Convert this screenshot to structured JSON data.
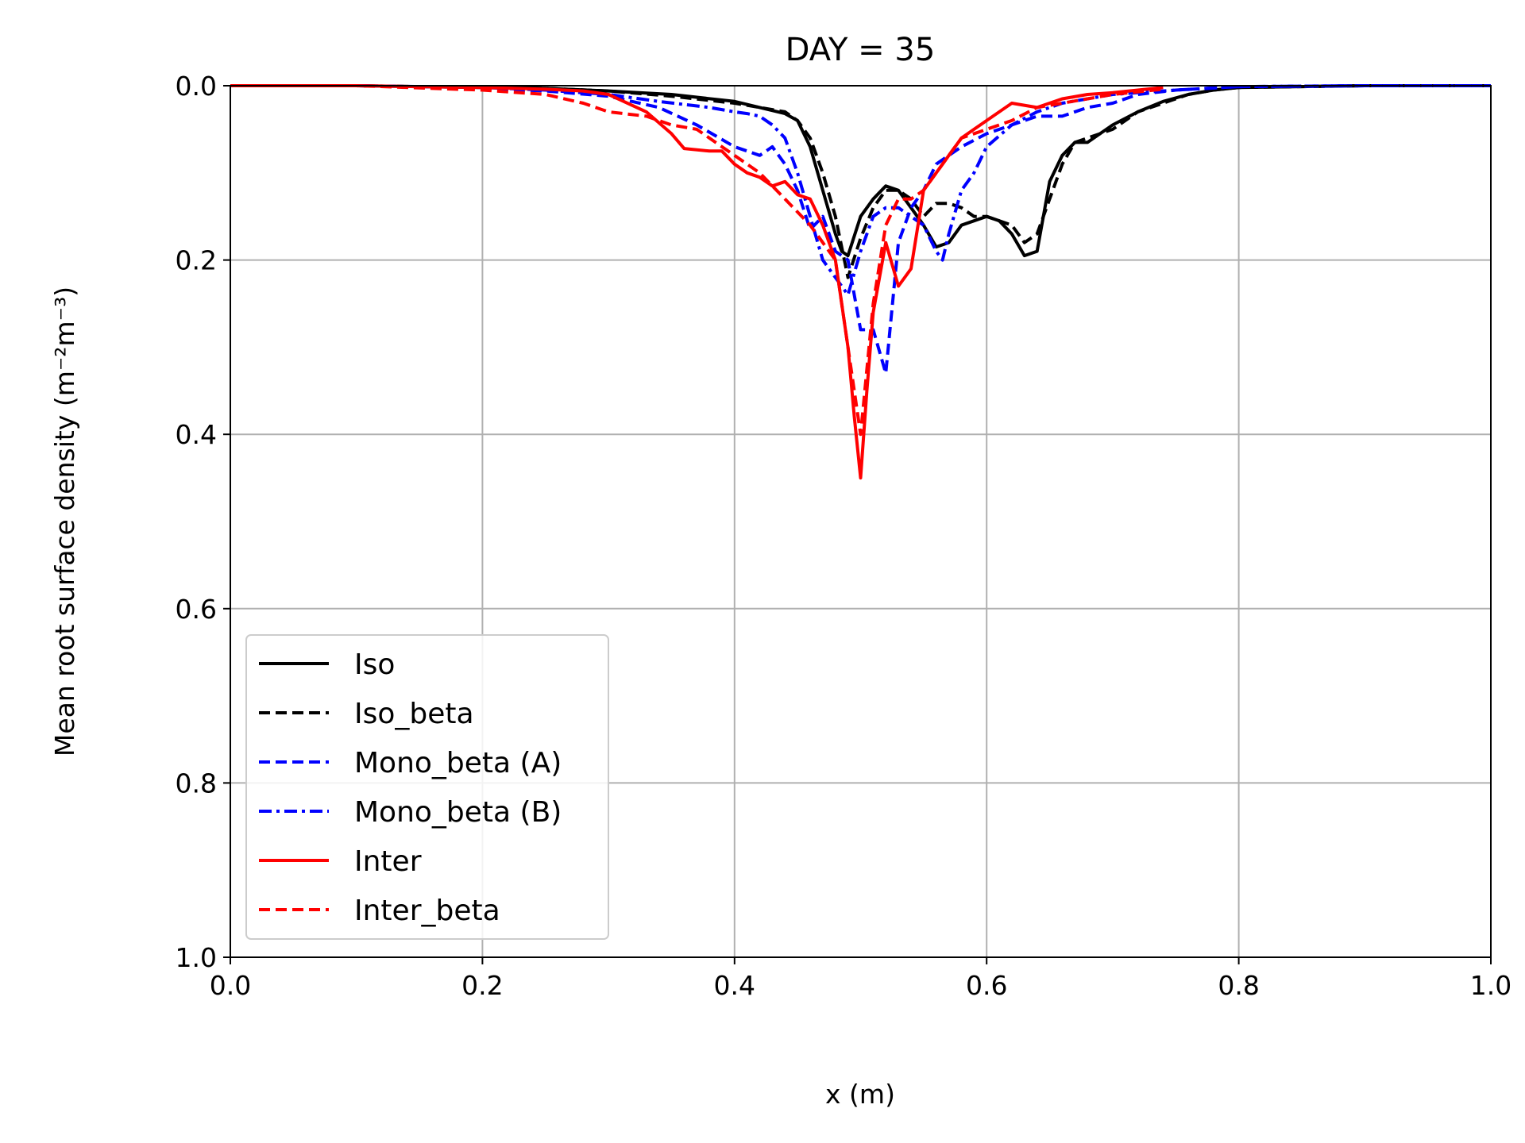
{
  "chart_data": {
    "type": "line",
    "title": "DAY = 35",
    "xlabel": "x (m)",
    "ylabel": "Mean root surface density (m⁻²m⁻³)",
    "xlim": [
      0.0,
      1.0
    ],
    "ylim": [
      0.0,
      1.0
    ],
    "y_inverted": true,
    "grid": true,
    "legend_position": "lower-left",
    "x_ticks": [
      "0.0",
      "0.2",
      "0.4",
      "0.6",
      "0.8",
      "1.0"
    ],
    "y_ticks": [
      "0.0",
      "0.2",
      "0.4",
      "0.6",
      "0.8",
      "1.0"
    ],
    "series": [
      {
        "name": "Iso",
        "color": "#000000",
        "dash": "solid",
        "x": [
          0.0,
          0.1,
          0.2,
          0.25,
          0.3,
          0.35,
          0.4,
          0.42,
          0.44,
          0.45,
          0.46,
          0.47,
          0.48,
          0.485,
          0.49,
          0.5,
          0.51,
          0.52,
          0.53,
          0.54,
          0.55,
          0.56,
          0.57,
          0.58,
          0.6,
          0.61,
          0.62,
          0.63,
          0.64,
          0.65,
          0.66,
          0.67,
          0.68,
          0.69,
          0.7,
          0.72,
          0.74,
          0.76,
          0.78,
          0.8,
          0.85,
          0.9,
          1.0
        ],
        "y": [
          0.0,
          0.0,
          0.002,
          0.003,
          0.006,
          0.01,
          0.018,
          0.025,
          0.032,
          0.04,
          0.07,
          0.12,
          0.17,
          0.19,
          0.195,
          0.15,
          0.13,
          0.115,
          0.12,
          0.14,
          0.16,
          0.185,
          0.18,
          0.16,
          0.15,
          0.155,
          0.17,
          0.195,
          0.19,
          0.11,
          0.08,
          0.065,
          0.065,
          0.055,
          0.045,
          0.03,
          0.018,
          0.01,
          0.005,
          0.002,
          0.001,
          0.0,
          0.0
        ]
      },
      {
        "name": "Iso_beta",
        "color": "#000000",
        "dash": "dashed",
        "x": [
          0.0,
          0.1,
          0.2,
          0.25,
          0.3,
          0.35,
          0.4,
          0.42,
          0.44,
          0.45,
          0.46,
          0.47,
          0.48,
          0.49,
          0.5,
          0.51,
          0.52,
          0.53,
          0.54,
          0.55,
          0.56,
          0.57,
          0.58,
          0.59,
          0.6,
          0.62,
          0.63,
          0.64,
          0.65,
          0.66,
          0.67,
          0.68,
          0.7,
          0.72,
          0.74,
          0.76,
          0.78,
          0.8,
          0.85,
          0.9,
          1.0
        ],
        "y": [
          0.0,
          0.0,
          0.002,
          0.003,
          0.006,
          0.012,
          0.02,
          0.025,
          0.03,
          0.04,
          0.06,
          0.1,
          0.15,
          0.22,
          0.175,
          0.14,
          0.12,
          0.12,
          0.13,
          0.15,
          0.135,
          0.135,
          0.14,
          0.15,
          0.15,
          0.16,
          0.18,
          0.17,
          0.13,
          0.09,
          0.065,
          0.06,
          0.05,
          0.03,
          0.02,
          0.01,
          0.005,
          0.002,
          0.001,
          0.0,
          0.0
        ]
      },
      {
        "name": "Mono_beta (A)",
        "color": "#0000ff",
        "dash": "dashed",
        "x": [
          0.0,
          0.1,
          0.2,
          0.25,
          0.3,
          0.34,
          0.37,
          0.4,
          0.41,
          0.42,
          0.43,
          0.44,
          0.45,
          0.46,
          0.47,
          0.48,
          0.49,
          0.5,
          0.51,
          0.52,
          0.53,
          0.54,
          0.55,
          0.56,
          0.57,
          0.58,
          0.6,
          0.62,
          0.64,
          0.66,
          0.68,
          0.7,
          0.72,
          0.75,
          0.8,
          0.9,
          1.0
        ],
        "y": [
          0.0,
          0.0,
          0.003,
          0.006,
          0.012,
          0.025,
          0.045,
          0.07,
          0.075,
          0.08,
          0.07,
          0.09,
          0.12,
          0.165,
          0.15,
          0.19,
          0.2,
          0.28,
          0.28,
          0.33,
          0.18,
          0.14,
          0.12,
          0.09,
          0.08,
          0.07,
          0.055,
          0.045,
          0.035,
          0.035,
          0.025,
          0.02,
          0.01,
          0.005,
          0.001,
          0.0,
          0.0
        ]
      },
      {
        "name": "Mono_beta (B)",
        "color": "#0000ff",
        "dash": "dashdot",
        "x": [
          0.0,
          0.1,
          0.2,
          0.25,
          0.3,
          0.34,
          0.38,
          0.4,
          0.41,
          0.42,
          0.43,
          0.44,
          0.45,
          0.46,
          0.47,
          0.48,
          0.49,
          0.5,
          0.51,
          0.52,
          0.53,
          0.54,
          0.55,
          0.56,
          0.565,
          0.57,
          0.58,
          0.59,
          0.6,
          0.62,
          0.64,
          0.66,
          0.7,
          0.75,
          0.8,
          0.9,
          1.0
        ],
        "y": [
          0.0,
          0.0,
          0.002,
          0.005,
          0.01,
          0.018,
          0.025,
          0.03,
          0.032,
          0.035,
          0.045,
          0.06,
          0.1,
          0.15,
          0.2,
          0.22,
          0.24,
          0.19,
          0.15,
          0.14,
          0.14,
          0.15,
          0.16,
          0.19,
          0.2,
          0.17,
          0.12,
          0.1,
          0.07,
          0.045,
          0.03,
          0.02,
          0.01,
          0.005,
          0.001,
          0.0,
          0.0
        ]
      },
      {
        "name": "Inter",
        "color": "#ff0000",
        "dash": "solid",
        "x": [
          0.0,
          0.1,
          0.2,
          0.25,
          0.28,
          0.3,
          0.33,
          0.35,
          0.36,
          0.38,
          0.39,
          0.4,
          0.41,
          0.42,
          0.43,
          0.44,
          0.45,
          0.46,
          0.47,
          0.48,
          0.49,
          0.495,
          0.5,
          0.505,
          0.51,
          0.52,
          0.53,
          0.54,
          0.55,
          0.56,
          0.57,
          0.58,
          0.59,
          0.6,
          0.62,
          0.64,
          0.66,
          0.68,
          0.7,
          0.72,
          0.74
        ],
        "y": [
          0.0,
          0.0,
          0.002,
          0.004,
          0.006,
          0.01,
          0.03,
          0.055,
          0.072,
          0.075,
          0.075,
          0.09,
          0.1,
          0.105,
          0.115,
          0.11,
          0.125,
          0.13,
          0.16,
          0.2,
          0.3,
          0.38,
          0.45,
          0.35,
          0.26,
          0.18,
          0.23,
          0.21,
          0.12,
          0.1,
          0.08,
          0.06,
          0.05,
          0.04,
          0.02,
          0.025,
          0.015,
          0.01,
          0.008,
          0.005,
          0.002
        ]
      },
      {
        "name": "Inter_beta",
        "color": "#ff0000",
        "dash": "dashed",
        "x": [
          0.0,
          0.1,
          0.2,
          0.25,
          0.28,
          0.3,
          0.33,
          0.35,
          0.37,
          0.39,
          0.4,
          0.42,
          0.44,
          0.46,
          0.47,
          0.48,
          0.49,
          0.5,
          0.51,
          0.52,
          0.53,
          0.54,
          0.55,
          0.56,
          0.57,
          0.58,
          0.6,
          0.62,
          0.64,
          0.66,
          0.7,
          0.74
        ],
        "y": [
          0.0,
          0.0,
          0.005,
          0.01,
          0.02,
          0.03,
          0.035,
          0.045,
          0.05,
          0.07,
          0.08,
          0.1,
          0.13,
          0.16,
          0.18,
          0.2,
          0.3,
          0.4,
          0.25,
          0.16,
          0.13,
          0.13,
          0.12,
          0.1,
          0.08,
          0.06,
          0.05,
          0.04,
          0.025,
          0.02,
          0.01,
          0.004
        ]
      }
    ]
  }
}
